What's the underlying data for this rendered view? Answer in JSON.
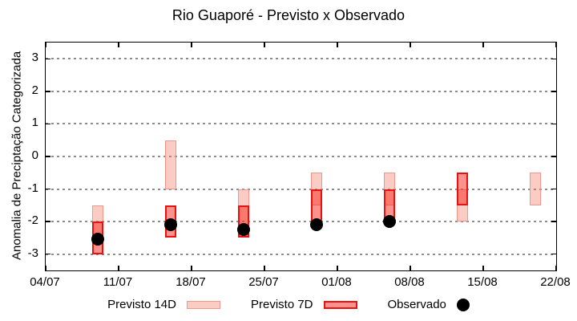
{
  "colors": {
    "previsto14_fill": "#fbccc5",
    "previsto14_border": "#f0968c",
    "previsto7_fill": "#fb928c",
    "previsto7_overlap": "#f4716c",
    "previsto7_border": "#e81210",
    "observed": "#000000",
    "grid": "#8c8c8c",
    "axis": "#000000"
  },
  "chart_data": {
    "type": "bar",
    "title": "Rio Guaporé - Previsto x Observado",
    "xlabel": "",
    "ylabel": "Anomalia de Preciptação Categorizada",
    "ylim": [
      -3.5,
      3.5
    ],
    "xlim": [
      "04/07",
      "22/08"
    ],
    "grid": "horizontal-dashed-gray",
    "legend_position": "bottom-center",
    "y_ticks": [
      3,
      2,
      1,
      0,
      -1,
      -2,
      -3
    ],
    "x_ticks": [
      {
        "label": "04/07",
        "day": 0
      },
      {
        "label": "11/07",
        "day": 7
      },
      {
        "label": "18/07",
        "day": 14
      },
      {
        "label": "25/07",
        "day": 21
      },
      {
        "label": "01/08",
        "day": 28
      },
      {
        "label": "08/08",
        "day": 35
      },
      {
        "label": "15/08",
        "day": 42
      },
      {
        "label": "22/08",
        "day": 49
      }
    ],
    "categories": [
      "09/07",
      "16/07",
      "23/07",
      "30/07",
      "06/08",
      "13/08",
      "20/08"
    ],
    "category_days": [
      5,
      12,
      19,
      26,
      33,
      40,
      47
    ],
    "series": [
      {
        "name": "Previsto 14D",
        "type": "floating-bar",
        "ranges": [
          [
            -2.5,
            -1.5
          ],
          [
            -1.0,
            0.5
          ],
          [
            -2.5,
            -1.0
          ],
          [
            -1.5,
            -0.5
          ],
          [
            -1.5,
            -0.5
          ],
          [
            -2.0,
            -1.0
          ],
          [
            -1.5,
            -0.5
          ]
        ]
      },
      {
        "name": "Previsto 7D",
        "type": "floating-bar",
        "ranges": [
          [
            -3.0,
            -2.0
          ],
          [
            -2.5,
            -1.5
          ],
          [
            -2.5,
            -1.5
          ],
          [
            -2.0,
            -1.0
          ],
          [
            -2.0,
            -1.0
          ],
          [
            -1.5,
            -0.5
          ],
          null
        ]
      },
      {
        "name": "Observado",
        "type": "scatter",
        "values": [
          -2.55,
          -2.1,
          -2.25,
          -2.1,
          -2.0,
          null,
          null
        ]
      }
    ]
  }
}
